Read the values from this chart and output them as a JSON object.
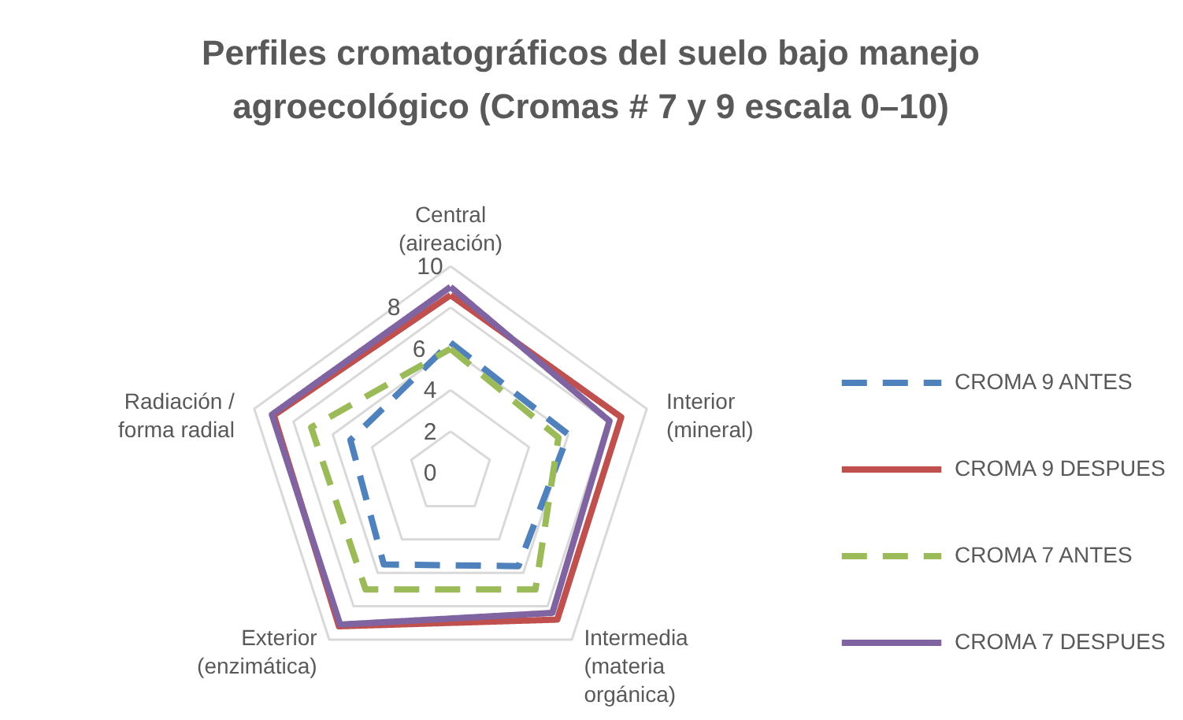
{
  "chart_data": {
    "type": "radar",
    "title": "Perfiles cromatográficos del suelo bajo manejo agroecológico (Cromas # 7 y 9 escala 0–10)",
    "categories": [
      "Central (aireación)",
      "Interior (mineral)",
      "Intermedia (materia orgánica)",
      "Exterior (enzimática)",
      "Radiación / forma radial"
    ],
    "series": [
      {
        "name": "CROMA 9 ANTES",
        "color": "#4f81bd",
        "line_style": "dashed",
        "values": [
          6.3,
          6,
          5.6,
          5.5,
          5.1
        ]
      },
      {
        "name": "CROMA 9 DESPUES",
        "color": "#c0504d",
        "line_style": "solid",
        "values": [
          8.6,
          8.7,
          8.8,
          9.2,
          9
        ]
      },
      {
        "name": "CROMA 7 ANTES",
        "color": "#9bbb59",
        "line_style": "dashed",
        "values": [
          6,
          5.5,
          7,
          7,
          7.1
        ]
      },
      {
        "name": "CROMA 7 DESPUES",
        "color": "#8064a2",
        "line_style": "solid",
        "values": [
          9,
          8.1,
          8.4,
          9.1,
          9.1
        ]
      }
    ],
    "ylim": [
      0,
      10
    ],
    "yticks": [
      0,
      2,
      4,
      6,
      8,
      10
    ],
    "grid": true,
    "legend": "right"
  }
}
